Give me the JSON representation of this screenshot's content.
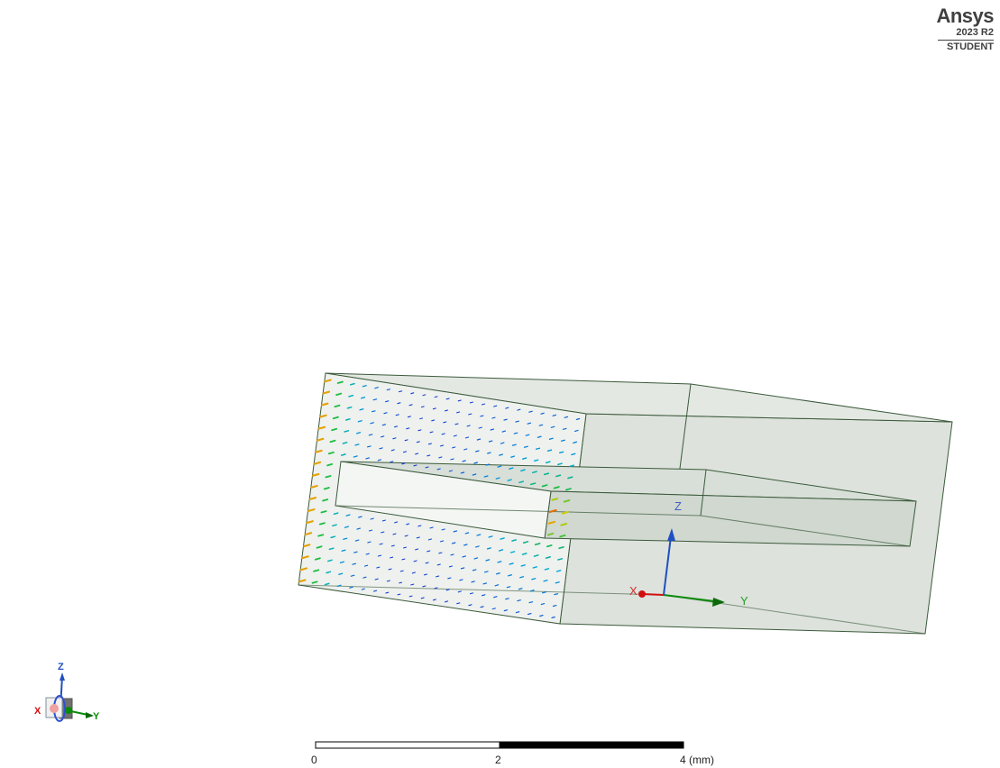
{
  "brand": {
    "name": "Ansys",
    "version": "2023 R2",
    "edition": "STUDENT"
  },
  "model_axes": {
    "x_label": "X",
    "y_label": "Y",
    "z_label": "Z"
  },
  "triad": {
    "x_label": "X",
    "y_label": "Y",
    "z_label": "Z"
  },
  "scale_bar": {
    "tick_0": "0",
    "tick_mid": "2",
    "tick_end": "4 (mm)"
  },
  "colors": {
    "background": "#ffffff",
    "body_fill": "#dfe4df",
    "edge": "#3b5a3b",
    "x_axis": "#d01010",
    "y_axis": "#0a8a0a",
    "z_axis": "#2050c0",
    "field_low": "#1530d0",
    "field_high": "#e01010"
  }
}
